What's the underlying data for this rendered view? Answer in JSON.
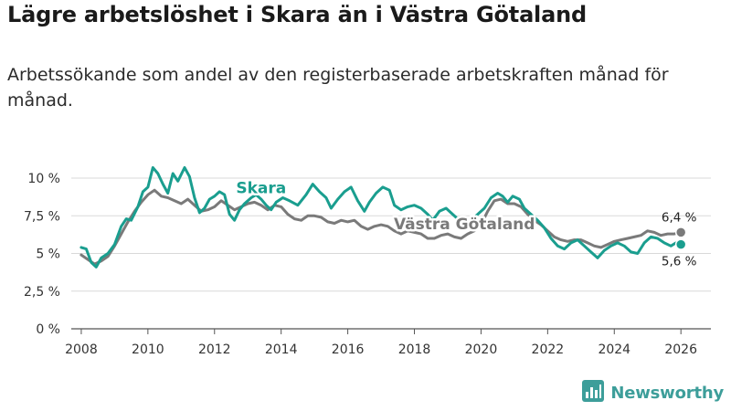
{
  "title": "Lägre arbetslöshet i Skara än i Västra Götaland",
  "subtitle": "Arbetssökande som andel av den registerbaserade arbetskraften månad för månad.",
  "brand": {
    "name": "Newsworthy",
    "icon": "bar-chart-icon",
    "color": "#3d9e9a"
  },
  "chart_data": {
    "type": "line",
    "title": "Lägre arbetslöshet i Skara än i Västra Götaland",
    "xlabel": "",
    "ylabel": "",
    "xlim": [
      2007.7,
      2026.9
    ],
    "ylim": [
      0,
      10
    ],
    "grid": true,
    "x_ticks": [
      2008,
      2010,
      2012,
      2014,
      2016,
      2018,
      2020,
      2022,
      2024,
      2026
    ],
    "x_tick_labels": [
      "2008",
      "2010",
      "2012",
      "2014",
      "2016",
      "2018",
      "2020",
      "2022",
      "2024",
      "2026"
    ],
    "y_ticks": [
      0,
      2.5,
      5,
      7.5,
      10
    ],
    "y_tick_labels": [
      "0 %",
      "2,5 %",
      "5 %",
      "7,5 %",
      "10 %"
    ],
    "series": [
      {
        "name": "Västra Götaland",
        "color": "#7a7a7a",
        "label_at": [
          2019.5,
          6.6
        ],
        "end_label": "6,4 %",
        "points": [
          [
            2008.0,
            4.9
          ],
          [
            2008.2,
            4.6
          ],
          [
            2008.4,
            4.3
          ],
          [
            2008.6,
            4.5
          ],
          [
            2008.8,
            4.8
          ],
          [
            2009.0,
            5.5
          ],
          [
            2009.2,
            6.3
          ],
          [
            2009.4,
            7.1
          ],
          [
            2009.6,
            7.8
          ],
          [
            2009.8,
            8.4
          ],
          [
            2010.0,
            8.9
          ],
          [
            2010.2,
            9.2
          ],
          [
            2010.4,
            8.8
          ],
          [
            2010.6,
            8.7
          ],
          [
            2010.8,
            8.5
          ],
          [
            2011.0,
            8.3
          ],
          [
            2011.2,
            8.6
          ],
          [
            2011.4,
            8.2
          ],
          [
            2011.6,
            7.8
          ],
          [
            2011.8,
            7.9
          ],
          [
            2012.0,
            8.1
          ],
          [
            2012.2,
            8.5
          ],
          [
            2012.4,
            8.2
          ],
          [
            2012.6,
            7.9
          ],
          [
            2012.8,
            8.1
          ],
          [
            2013.0,
            8.3
          ],
          [
            2013.2,
            8.4
          ],
          [
            2013.4,
            8.2
          ],
          [
            2013.6,
            7.9
          ],
          [
            2013.8,
            8.2
          ],
          [
            2014.0,
            8.1
          ],
          [
            2014.2,
            7.6
          ],
          [
            2014.4,
            7.3
          ],
          [
            2014.6,
            7.2
          ],
          [
            2014.8,
            7.5
          ],
          [
            2015.0,
            7.5
          ],
          [
            2015.2,
            7.4
          ],
          [
            2015.4,
            7.1
          ],
          [
            2015.6,
            7.0
          ],
          [
            2015.8,
            7.2
          ],
          [
            2016.0,
            7.1
          ],
          [
            2016.2,
            7.2
          ],
          [
            2016.4,
            6.8
          ],
          [
            2016.6,
            6.6
          ],
          [
            2016.8,
            6.8
          ],
          [
            2017.0,
            6.9
          ],
          [
            2017.2,
            6.8
          ],
          [
            2017.4,
            6.5
          ],
          [
            2017.6,
            6.3
          ],
          [
            2017.8,
            6.5
          ],
          [
            2018.0,
            6.4
          ],
          [
            2018.2,
            6.3
          ],
          [
            2018.4,
            6.0
          ],
          [
            2018.6,
            6.0
          ],
          [
            2018.8,
            6.2
          ],
          [
            2019.0,
            6.3
          ],
          [
            2019.2,
            6.1
          ],
          [
            2019.4,
            6.0
          ],
          [
            2019.6,
            6.3
          ],
          [
            2019.8,
            6.5
          ],
          [
            2020.0,
            6.9
          ],
          [
            2020.2,
            7.8
          ],
          [
            2020.4,
            8.5
          ],
          [
            2020.6,
            8.6
          ],
          [
            2020.8,
            8.3
          ],
          [
            2021.0,
            8.3
          ],
          [
            2021.2,
            8.1
          ],
          [
            2021.4,
            7.6
          ],
          [
            2021.6,
            7.2
          ],
          [
            2021.8,
            6.9
          ],
          [
            2022.0,
            6.5
          ],
          [
            2022.2,
            6.1
          ],
          [
            2022.4,
            5.9
          ],
          [
            2022.6,
            5.8
          ],
          [
            2022.8,
            5.9
          ],
          [
            2023.0,
            5.9
          ],
          [
            2023.2,
            5.7
          ],
          [
            2023.4,
            5.5
          ],
          [
            2023.6,
            5.4
          ],
          [
            2023.8,
            5.6
          ],
          [
            2024.0,
            5.8
          ],
          [
            2024.2,
            5.9
          ],
          [
            2024.4,
            6.0
          ],
          [
            2024.6,
            6.1
          ],
          [
            2024.8,
            6.2
          ],
          [
            2025.0,
            6.5
          ],
          [
            2025.2,
            6.4
          ],
          [
            2025.4,
            6.2
          ],
          [
            2025.6,
            6.3
          ],
          [
            2025.8,
            6.3
          ],
          [
            2026.0,
            6.4
          ]
        ]
      },
      {
        "name": "Skara",
        "color": "#1a9e8f",
        "label_at": [
          2013.4,
          9.0
        ],
        "end_label": "5,6 %",
        "points": [
          [
            2008.0,
            5.4
          ],
          [
            2008.15,
            5.3
          ],
          [
            2008.3,
            4.4
          ],
          [
            2008.45,
            4.1
          ],
          [
            2008.6,
            4.7
          ],
          [
            2008.8,
            5.0
          ],
          [
            2009.0,
            5.6
          ],
          [
            2009.2,
            6.8
          ],
          [
            2009.35,
            7.3
          ],
          [
            2009.5,
            7.2
          ],
          [
            2009.7,
            8.1
          ],
          [
            2009.85,
            9.1
          ],
          [
            2010.0,
            9.4
          ],
          [
            2010.15,
            10.7
          ],
          [
            2010.3,
            10.3
          ],
          [
            2010.45,
            9.6
          ],
          [
            2010.6,
            9.0
          ],
          [
            2010.75,
            10.3
          ],
          [
            2010.9,
            9.8
          ],
          [
            2011.1,
            10.7
          ],
          [
            2011.25,
            10.1
          ],
          [
            2011.4,
            8.7
          ],
          [
            2011.55,
            7.7
          ],
          [
            2011.7,
            8.0
          ],
          [
            2011.85,
            8.6
          ],
          [
            2012.0,
            8.8
          ],
          [
            2012.15,
            9.1
          ],
          [
            2012.3,
            8.9
          ],
          [
            2012.45,
            7.6
          ],
          [
            2012.6,
            7.2
          ],
          [
            2012.75,
            7.9
          ],
          [
            2012.9,
            8.3
          ],
          [
            2013.1,
            8.7
          ],
          [
            2013.25,
            8.9
          ],
          [
            2013.4,
            8.6
          ],
          [
            2013.55,
            8.2
          ],
          [
            2013.7,
            7.9
          ],
          [
            2013.85,
            8.4
          ],
          [
            2014.05,
            8.7
          ],
          [
            2014.25,
            8.5
          ],
          [
            2014.5,
            8.2
          ],
          [
            2014.75,
            8.9
          ],
          [
            2014.95,
            9.6
          ],
          [
            2015.15,
            9.1
          ],
          [
            2015.35,
            8.7
          ],
          [
            2015.5,
            8.0
          ],
          [
            2015.7,
            8.6
          ],
          [
            2015.9,
            9.1
          ],
          [
            2016.1,
            9.4
          ],
          [
            2016.3,
            8.5
          ],
          [
            2016.5,
            7.8
          ],
          [
            2016.65,
            8.4
          ],
          [
            2016.85,
            9.0
          ],
          [
            2017.05,
            9.4
          ],
          [
            2017.25,
            9.2
          ],
          [
            2017.4,
            8.2
          ],
          [
            2017.6,
            7.9
          ],
          [
            2017.8,
            8.1
          ],
          [
            2018.0,
            8.2
          ],
          [
            2018.2,
            8.0
          ],
          [
            2018.4,
            7.6
          ],
          [
            2018.55,
            7.2
          ],
          [
            2018.75,
            7.8
          ],
          [
            2018.95,
            8.0
          ],
          [
            2019.15,
            7.6
          ],
          [
            2019.35,
            7.2
          ],
          [
            2019.5,
            6.9
          ],
          [
            2019.7,
            7.2
          ],
          [
            2019.9,
            7.6
          ],
          [
            2020.1,
            8.0
          ],
          [
            2020.3,
            8.7
          ],
          [
            2020.5,
            9.0
          ],
          [
            2020.65,
            8.8
          ],
          [
            2020.8,
            8.4
          ],
          [
            2020.95,
            8.8
          ],
          [
            2021.15,
            8.6
          ],
          [
            2021.3,
            8.0
          ],
          [
            2021.5,
            7.6
          ],
          [
            2021.7,
            7.2
          ],
          [
            2021.9,
            6.7
          ],
          [
            2022.1,
            6.0
          ],
          [
            2022.3,
            5.5
          ],
          [
            2022.5,
            5.3
          ],
          [
            2022.7,
            5.7
          ],
          [
            2022.9,
            5.9
          ],
          [
            2023.1,
            5.5
          ],
          [
            2023.3,
            5.1
          ],
          [
            2023.5,
            4.7
          ],
          [
            2023.7,
            5.2
          ],
          [
            2023.9,
            5.5
          ],
          [
            2024.1,
            5.7
          ],
          [
            2024.3,
            5.5
          ],
          [
            2024.5,
            5.1
          ],
          [
            2024.7,
            5.0
          ],
          [
            2024.9,
            5.7
          ],
          [
            2025.1,
            6.1
          ],
          [
            2025.3,
            6.0
          ],
          [
            2025.5,
            5.7
          ],
          [
            2025.7,
            5.5
          ],
          [
            2025.85,
            5.7
          ],
          [
            2026.0,
            5.6
          ]
        ]
      }
    ]
  }
}
